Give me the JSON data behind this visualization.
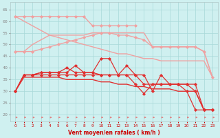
{
  "xlabel": "Vent moyen/en rafales ( km/h )",
  "x": [
    0,
    1,
    2,
    3,
    4,
    5,
    6,
    7,
    8,
    9,
    10,
    11,
    12,
    13,
    14,
    15,
    16,
    17,
    18,
    19,
    20,
    21,
    22,
    23
  ],
  "series": [
    {
      "name": "light_straight1",
      "color": "#f0a0a0",
      "linewidth": 1.0,
      "marker": "D",
      "markersize": 2.0,
      "y": [
        62,
        62,
        62,
        62,
        62,
        62,
        62,
        62,
        62,
        58,
        58,
        58,
        58,
        58,
        58,
        null,
        null,
        null,
        null,
        null,
        null,
        null,
        null,
        null
      ]
    },
    {
      "name": "light_straight2",
      "color": "#f0a0a0",
      "linewidth": 1.0,
      "marker": "D",
      "markersize": 2.0,
      "y": [
        47,
        47,
        47,
        48,
        49,
        50,
        51,
        52,
        53,
        54,
        55,
        55,
        54,
        54,
        53,
        52,
        49,
        49,
        49,
        49,
        49,
        49,
        47,
        36
      ]
    },
    {
      "name": "light_diagonal",
      "color": "#f0a0a0",
      "linewidth": 1.0,
      "marker": "none",
      "y": [
        62,
        60,
        58,
        56,
        54,
        53,
        52,
        51,
        50,
        49,
        48,
        47,
        46,
        46,
        45,
        44,
        44,
        43,
        43,
        43,
        43,
        43,
        43,
        36
      ]
    },
    {
      "name": "light_diagonal2",
      "color": "#f0a0a0",
      "linewidth": 1.0,
      "marker": "none",
      "y": [
        47,
        47,
        50,
        52,
        54,
        54,
        54,
        54,
        54,
        55,
        55,
        55,
        55,
        55,
        55,
        55,
        49,
        49,
        49,
        49,
        49,
        49,
        47,
        36
      ]
    },
    {
      "name": "dark_straight",
      "color": "#e03030",
      "linewidth": 1.0,
      "marker": "none",
      "y": [
        30,
        36,
        36,
        36,
        36,
        36,
        35,
        35,
        35,
        35,
        34,
        34,
        33,
        33,
        32,
        32,
        31,
        31,
        31,
        30,
        30,
        30,
        22,
        22
      ]
    },
    {
      "name": "dark_marker1",
      "color": "#e03030",
      "linewidth": 0.9,
      "marker": "D",
      "markersize": 2.0,
      "y": [
        30,
        37,
        37,
        37,
        37,
        37,
        37,
        37,
        37,
        37,
        37,
        37,
        37,
        37,
        37,
        33,
        33,
        33,
        33,
        33,
        33,
        33,
        22,
        22
      ]
    },
    {
      "name": "dark_marker2",
      "color": "#e03030",
      "linewidth": 0.9,
      "marker": "D",
      "markersize": 2.0,
      "y": [
        30,
        37,
        37,
        38,
        38,
        38,
        38,
        41,
        38,
        38,
        44,
        44,
        37,
        41,
        37,
        37,
        30,
        37,
        33,
        33,
        33,
        30,
        22,
        22
      ]
    },
    {
      "name": "dark_marker3",
      "color": "#e03030",
      "linewidth": 0.9,
      "marker": "D",
      "markersize": 2.0,
      "y": [
        30,
        37,
        37,
        38,
        38,
        38,
        40,
        38,
        38,
        38,
        37,
        37,
        37,
        37,
        33,
        29,
        33,
        33,
        33,
        33,
        30,
        22,
        22,
        22
      ]
    }
  ],
  "ylim": [
    17,
    68
  ],
  "yticks": [
    20,
    25,
    30,
    35,
    40,
    45,
    50,
    55,
    60,
    65
  ],
  "xticks": [
    0,
    1,
    2,
    3,
    4,
    5,
    6,
    7,
    8,
    9,
    10,
    11,
    12,
    13,
    14,
    15,
    16,
    17,
    18,
    19,
    20,
    21,
    22,
    23
  ],
  "bg_color": "#cff0f0",
  "grid_color": "#a8d8d8",
  "arrow_color": "#e08080",
  "xlabel_color": "#cc0000"
}
